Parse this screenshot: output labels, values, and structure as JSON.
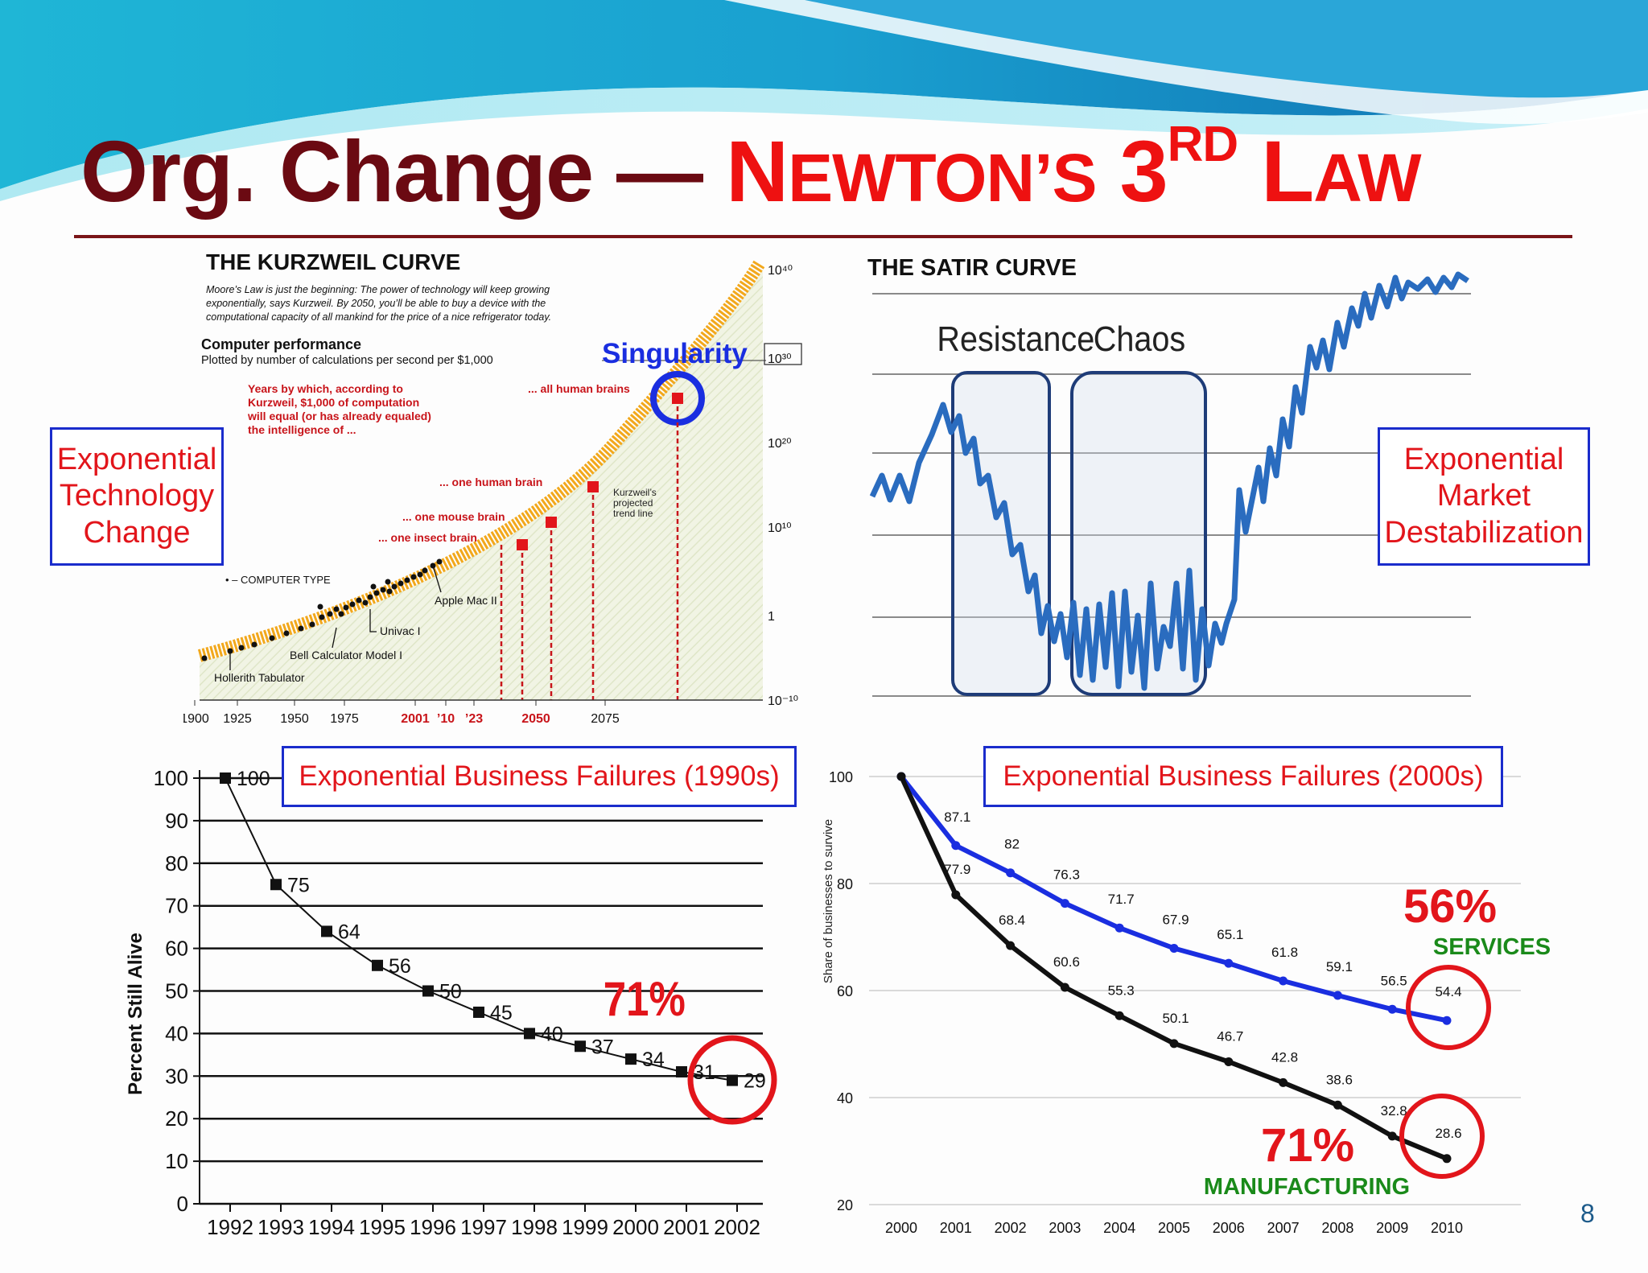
{
  "slide": {
    "title_part1": "Org. Change —",
    "title_n": "N",
    "title_ewtons": "EWTON’S",
    "title_3": "3",
    "title_rd": "RD",
    "title_l": "L",
    "title_aw": "AW",
    "page_number": "8",
    "colors": {
      "title_dark": "#6b0a12",
      "title_red": "#ee1111",
      "box_border": "#1a2ccc",
      "label_red": "#e2151b"
    }
  },
  "kurzweil": {
    "title": "THE KURZWEIL CURVE",
    "desc_lines": [
      "Moore’s Law is just the beginning: The power of technology will keep growing",
      "exponentially, says Kurzweil. By 2050, you’ll be able to buy a device with the",
      "computational capacity of all mankind for the price of a nice refrigerator today."
    ],
    "perf_heading": "Computer performance",
    "perf_sub": "Plotted by number of calculations per second per $1,000",
    "singularity": "Singularity",
    "years_note": [
      "Years by which, according to",
      "Kurzweil, $1,000 of computation",
      "will equal (or has already equaled)",
      "the intelligence of ..."
    ],
    "milestones": [
      "... all human brains",
      "... one human brain",
      "... one mouse brain",
      "... one insect brain"
    ],
    "trend_label": [
      "Kurzweil’s",
      "projected",
      "trend line"
    ],
    "computer_type": "• – COMPUTER TYPE",
    "computers": [
      "Apple Mac II",
      "Univac I",
      "Bell Calculator Model I",
      "Hollerith Tabulator"
    ],
    "y_ticks": [
      "10⁴⁰",
      "10³⁰",
      "10²⁰",
      "10¹⁰",
      "1",
      "10⁻¹⁰"
    ],
    "x_ticks": [
      "1900",
      "1925",
      "1950",
      "1975",
      "2001",
      "’10",
      "’23",
      "2050",
      "2075"
    ],
    "left_box": "Exponential Technology Change"
  },
  "satir": {
    "title": "THE SATIR CURVE",
    "resistance": "Resistance",
    "chaos": "Chaos",
    "right_box": "Exponential Market Destabilization"
  },
  "chart_data": [
    {
      "type": "line",
      "title": "Exponential Business Failures (1990s)",
      "ylabel": "Percent Still Alive",
      "x": [
        "1992",
        "1993",
        "1994",
        "1995",
        "1996",
        "1997",
        "1998",
        "1999",
        "2000",
        "2001",
        "2002"
      ],
      "values": [
        100,
        75,
        64,
        56,
        50,
        45,
        40,
        37,
        34,
        31,
        29
      ],
      "ylim": [
        0,
        100
      ],
      "y_ticks": [
        "0",
        "10",
        "20",
        "30",
        "40",
        "50",
        "60",
        "70",
        "80",
        "90",
        "100"
      ],
      "grid": true,
      "annotation": "71%"
    },
    {
      "type": "line",
      "title": "Exponential Business Failures (2000s)",
      "ylabel": "Share of businesses to survive",
      "x": [
        "2000",
        "2001",
        "2002",
        "2003",
        "2004",
        "2005",
        "2006",
        "2007",
        "2008",
        "2009",
        "2010"
      ],
      "ylim": [
        20,
        100
      ],
      "y_ticks": [
        "20",
        "40",
        "60",
        "80",
        "100"
      ],
      "grid": true,
      "series": [
        {
          "name": "SERVICES",
          "color": "#1a2ee0",
          "values": [
            100,
            87.1,
            82,
            76.3,
            71.7,
            67.9,
            65.1,
            61.8,
            59.1,
            56.5,
            54.4
          ],
          "labels": [
            "",
            "87.1",
            "82",
            "76.3",
            "71.7",
            "67.9",
            "65.1",
            "61.8",
            "59.1",
            "56.5",
            "54.4"
          ]
        },
        {
          "name": "MANUFACTURING",
          "color": "#111111",
          "values": [
            100,
            77.9,
            68.4,
            60.6,
            55.3,
            50.1,
            46.7,
            42.8,
            38.6,
            32.8,
            28.6
          ],
          "labels": [
            "",
            "77.9",
            "68.4",
            "60.6",
            "55.3",
            "50.1",
            "46.7",
            "42.8",
            "38.6",
            "32.8",
            "28.6"
          ]
        }
      ],
      "annotations": {
        "services_pct": "56%",
        "manufacturing_pct": "71%"
      }
    }
  ]
}
